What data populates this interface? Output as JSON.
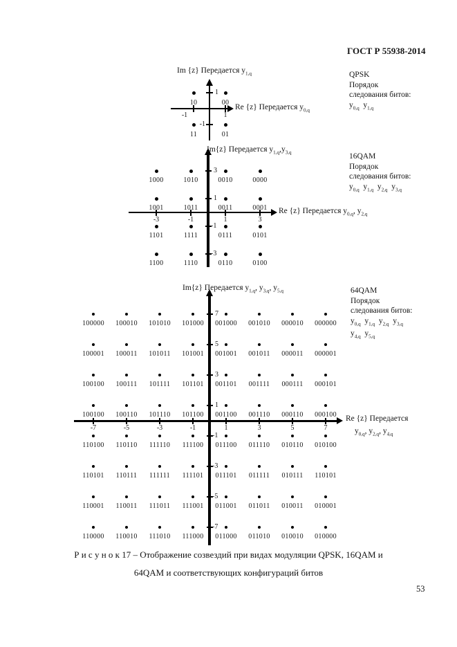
{
  "page": {
    "header": "ГОСТ Р 55938-2014",
    "caption_line1": "Р и с у н о к 17 – Отображение созвездий при видах модуляции QPSK, 16QAM и",
    "caption_line2": "64QAM и соответствующих конфигураций битов",
    "page_number": "53"
  },
  "diagrams": {
    "qpsk": {
      "modulation": "QPSK",
      "im_label": "Im {z} Передается  y_{1,q}",
      "re_label": "Re {z} Передается y_{0,q}",
      "re_label2": "",
      "legend": {
        "title": "QPSK",
        "line1": "Порядок",
        "line2": "следования битов:",
        "bits1": "y_{0,q}  y_{1,q}",
        "bits2": ""
      },
      "x_values": [
        -1,
        1
      ],
      "x_ticks": [
        -1,
        1
      ],
      "y_ticks": [
        1,
        -1
      ],
      "rows": [
        {
          "y": 1,
          "labels": [
            "10",
            "00"
          ]
        },
        {
          "y": -1,
          "labels": [
            "11",
            "01"
          ]
        }
      ]
    },
    "qam16": {
      "modulation": "16QAM",
      "im_label": "Im{z} Передается y_{1,q},y_{3,q}",
      "re_label": "Re {z} Передается y_{0,q}, y_{2,q}",
      "re_label2": "",
      "legend": {
        "title": "16QAM",
        "line1": "Порядок",
        "line2": "следования битов:",
        "bits1": "y_{0,q}  y_{1,q}  y_{2,q}  y_{3,q}",
        "bits2": ""
      },
      "x_values": [
        -3,
        -1,
        1,
        3
      ],
      "x_ticks": [
        -3,
        -1,
        1,
        3
      ],
      "y_ticks": [
        3,
        1,
        -1,
        -3
      ],
      "rows": [
        {
          "y": 3,
          "labels": [
            "1000",
            "1010",
            "0010",
            "0000"
          ]
        },
        {
          "y": 1,
          "labels": [
            "1001",
            "1011",
            "0011",
            "0001"
          ]
        },
        {
          "y": -1,
          "labels": [
            "1101",
            "1111",
            "0111",
            "0101"
          ]
        },
        {
          "y": -3,
          "labels": [
            "1100",
            "1110",
            "0110",
            "0100"
          ]
        }
      ]
    },
    "qam64": {
      "modulation": "64QAM",
      "im_label": "Im{z} Передается y_{1,q}, y_{3,q}, y_{5,q}",
      "re_label": "Re {z} Передается",
      "re_label2": "y_{0,q}, y_{2,q}, y_{4,q}",
      "legend": {
        "title": "64QAM",
        "line1": "Порядок",
        "line2": "следования битов:",
        "bits1": "y_{0,q}  y_{1,q}  y_{2,q}  y_{3,q}",
        "bits2": "y_{4,q}  y_{5,q}"
      },
      "x_values": [
        -7,
        -5,
        -3,
        -1,
        1,
        3,
        5,
        7
      ],
      "x_ticks": [
        -7,
        -5,
        -3,
        -1,
        1,
        3,
        5,
        7
      ],
      "y_ticks": [
        7,
        5,
        3,
        1,
        -1,
        -3,
        -5,
        -7
      ],
      "rows": [
        {
          "y": 7,
          "labels": [
            "100000",
            "100010",
            "101010",
            "101000",
            "001000",
            "001010",
            "000010",
            "000000"
          ]
        },
        {
          "y": 5,
          "labels": [
            "100001",
            "100011",
            "101011",
            "101001",
            "001001",
            "001011",
            "000011",
            "000001"
          ]
        },
        {
          "y": 3,
          "labels": [
            "100100",
            "100111",
            "101111",
            "101101",
            "001101",
            "001111",
            "000111",
            "000101"
          ]
        },
        {
          "y": 1,
          "labels": [
            "100100",
            "100110",
            "101110",
            "101100",
            "001100",
            "001110",
            "000110",
            "000100"
          ]
        },
        {
          "y": -1,
          "labels": [
            "110100",
            "110110",
            "111110",
            "111100",
            "011100",
            "011110",
            "010110",
            "010100"
          ]
        },
        {
          "y": -3,
          "labels": [
            "110101",
            "110111",
            "111111",
            "111101",
            "011101",
            "011111",
            "010111",
            "110101"
          ]
        },
        {
          "y": -5,
          "labels": [
            "110001",
            "110011",
            "111011",
            "111001",
            "011001",
            "011011",
            "010011",
            "010001"
          ]
        },
        {
          "y": -7,
          "labels": [
            "110000",
            "110010",
            "111010",
            "111000",
            "011000",
            "011010",
            "010010",
            "010000"
          ]
        }
      ]
    }
  }
}
